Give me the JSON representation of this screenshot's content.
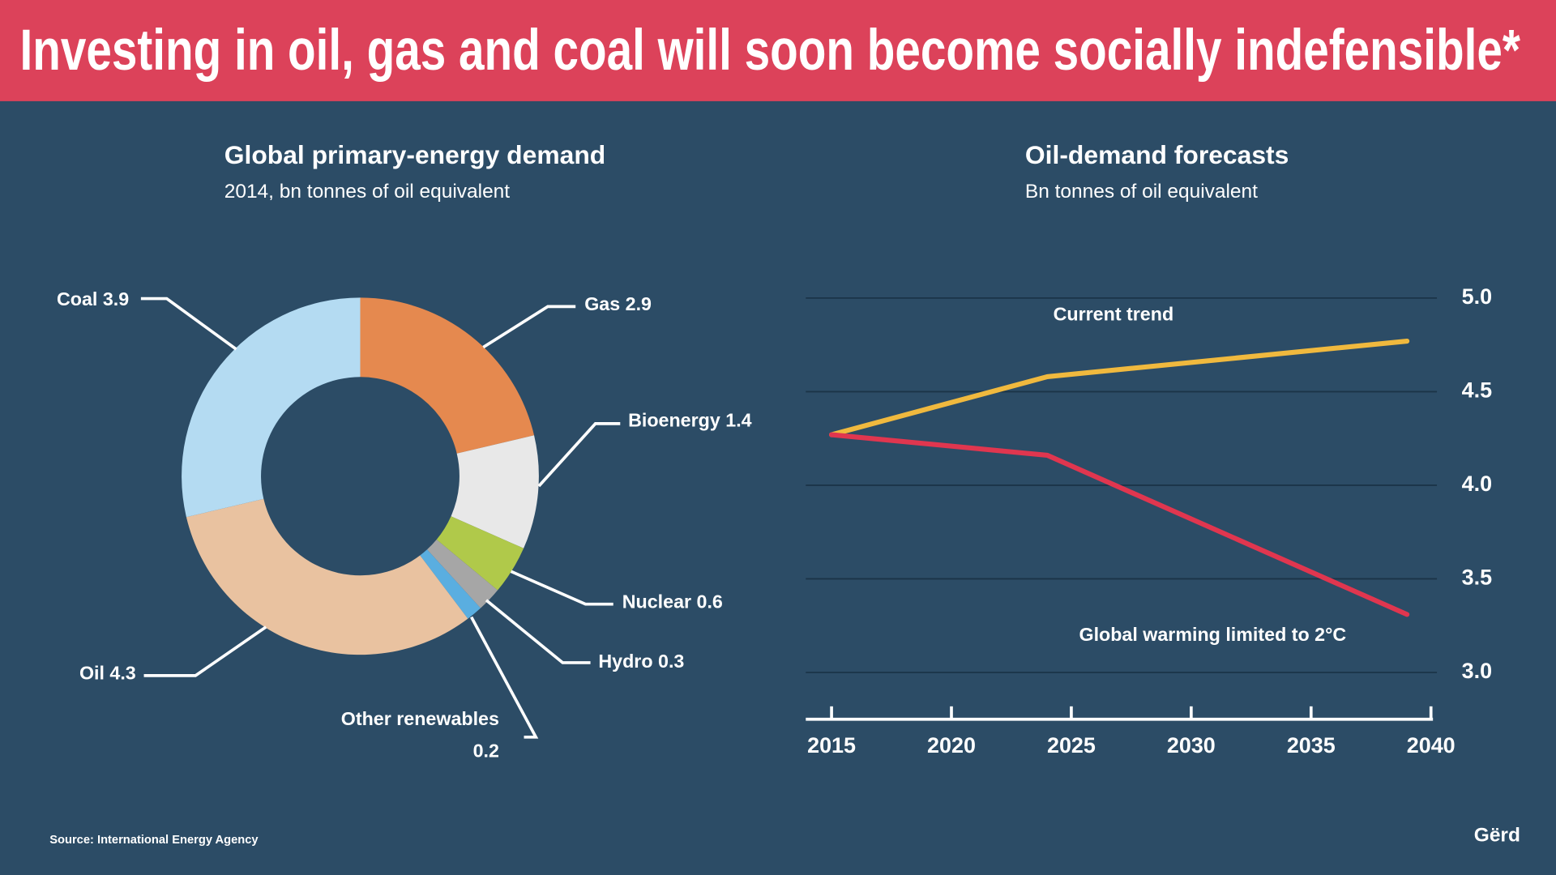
{
  "title": "Investing in oil, gas and coal will soon become socially indefensible*",
  "source": "Source: International Energy Agency",
  "logo": "Gërd",
  "chart_data": [
    {
      "type": "pie",
      "donut": true,
      "title": "Global primary-energy demand",
      "subtitle": "2014, bn tonnes of oil equivalent",
      "categories": [
        "Gas",
        "Bioenergy",
        "Nuclear",
        "Hydro",
        "Other renewables",
        "Oil",
        "Coal"
      ],
      "values": [
        2.9,
        1.4,
        0.6,
        0.3,
        0.2,
        4.3,
        3.9
      ],
      "colors": [
        "#e5894f",
        "#e8e8e8",
        "#b0c94a",
        "#a6a6a6",
        "#5aaee0",
        "#e9c2a0",
        "#b4dbf2"
      ]
    },
    {
      "type": "line",
      "title": "Oil-demand forecasts",
      "subtitle": "Bn tonnes of oil equivalent",
      "x": [
        2015,
        2024,
        2039
      ],
      "series": [
        {
          "name": "Current trend",
          "color": "#f0b93e",
          "values": [
            4.27,
            4.58,
            4.77
          ]
        },
        {
          "name": "Global warming limited to 2°C",
          "color": "#e0364f",
          "values": [
            4.27,
            4.16,
            3.31
          ]
        }
      ],
      "xlim": [
        2014,
        2040
      ],
      "xticks": [
        2015,
        2020,
        2025,
        2030,
        2035,
        2040
      ],
      "ylim": [
        2.75,
        5.05
      ],
      "yticks": [
        {
          "value": 5.0,
          "label": "5.0"
        },
        4.5,
        {
          "value": 4.0,
          "label": "4.0"
        },
        3.5,
        {
          "value": 3.0,
          "label": "3.0"
        }
      ],
      "grid": true
    }
  ]
}
